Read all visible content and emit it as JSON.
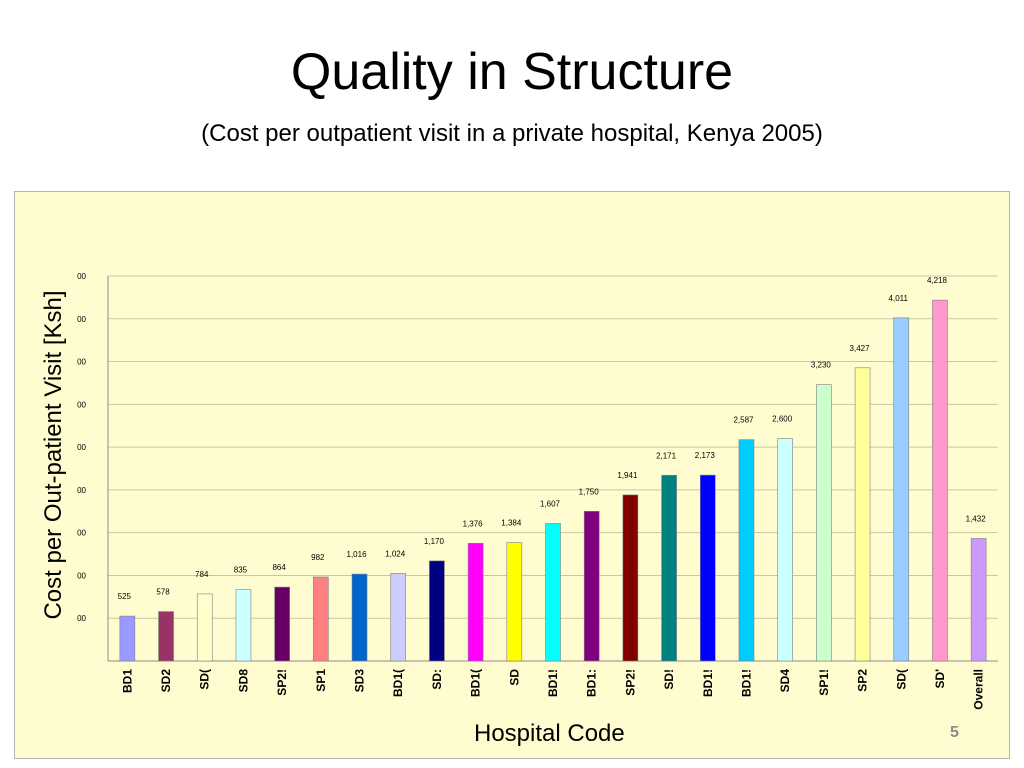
{
  "slide": {
    "title": "Quality in Structure",
    "subtitle": "(Cost per outpatient visit in a private hospital, Kenya 2005)",
    "page_number": "5"
  },
  "colors": {
    "background": "#ffffff",
    "plot_background": "#fffdd0",
    "gridline": "#c8c8a0"
  },
  "chart_data": {
    "type": "bar",
    "xlabel": "Hospital Code",
    "ylabel": "Cost per Out-patient Visit [Ksh]",
    "ylim": [
      0,
      4500
    ],
    "grid": true,
    "y_ticks": [
      {
        "value": 500,
        "label": "00"
      },
      {
        "value": 1000,
        "label": "00"
      },
      {
        "value": 1500,
        "label": "00"
      },
      {
        "value": 2000,
        "label": "00"
      },
      {
        "value": 2500,
        "label": "00"
      },
      {
        "value": 3000,
        "label": "00"
      },
      {
        "value": 3500,
        "label": "00"
      },
      {
        "value": 4000,
        "label": "00"
      },
      {
        "value": 4500,
        "label": "00"
      }
    ],
    "categories": [
      "BD1",
      "SD2",
      "SD(",
      "SD8",
      "SP2!",
      "SP1",
      "SD3",
      "BD1(",
      "SD:",
      "BD1(",
      "SD",
      "BD1!",
      "BD1:",
      "SP2!",
      "SD!",
      "BD1!",
      "BD1!",
      "SD4",
      "SP1!",
      "SP2",
      "SD(",
      "SD'",
      "Overall"
    ],
    "values": [
      525,
      578,
      784,
      835,
      864,
      982,
      1016,
      1024,
      1170,
      1376,
      1384,
      1607,
      1750,
      1941,
      2171,
      2173,
      2587,
      2600,
      3230,
      3427,
      4011,
      4218,
      1432
    ],
    "data_labels": [
      "525",
      "578",
      "784",
      "835",
      "864",
      "982",
      "1,016",
      "1,024",
      "1,170",
      "1,376",
      "1,384",
      "1,607",
      "1,750",
      "1,941",
      "2,171",
      "2,173",
      "2,587",
      "2,600",
      "3,230",
      "3,427",
      "4,011",
      "4,218",
      "1,432"
    ],
    "bar_colors": [
      "#9999ff",
      "#993366",
      "#ffffcc",
      "#ccffff",
      "#660066",
      "#ff8080",
      "#0066cc",
      "#ccccff",
      "#000080",
      "#ff00ff",
      "#ffff00",
      "#00ffff",
      "#800080",
      "#800000",
      "#008080",
      "#0000ff",
      "#00ccff",
      "#ccffff",
      "#ccffcc",
      "#ffff99",
      "#99ccff",
      "#ff99cc",
      "#cc99ff"
    ]
  }
}
